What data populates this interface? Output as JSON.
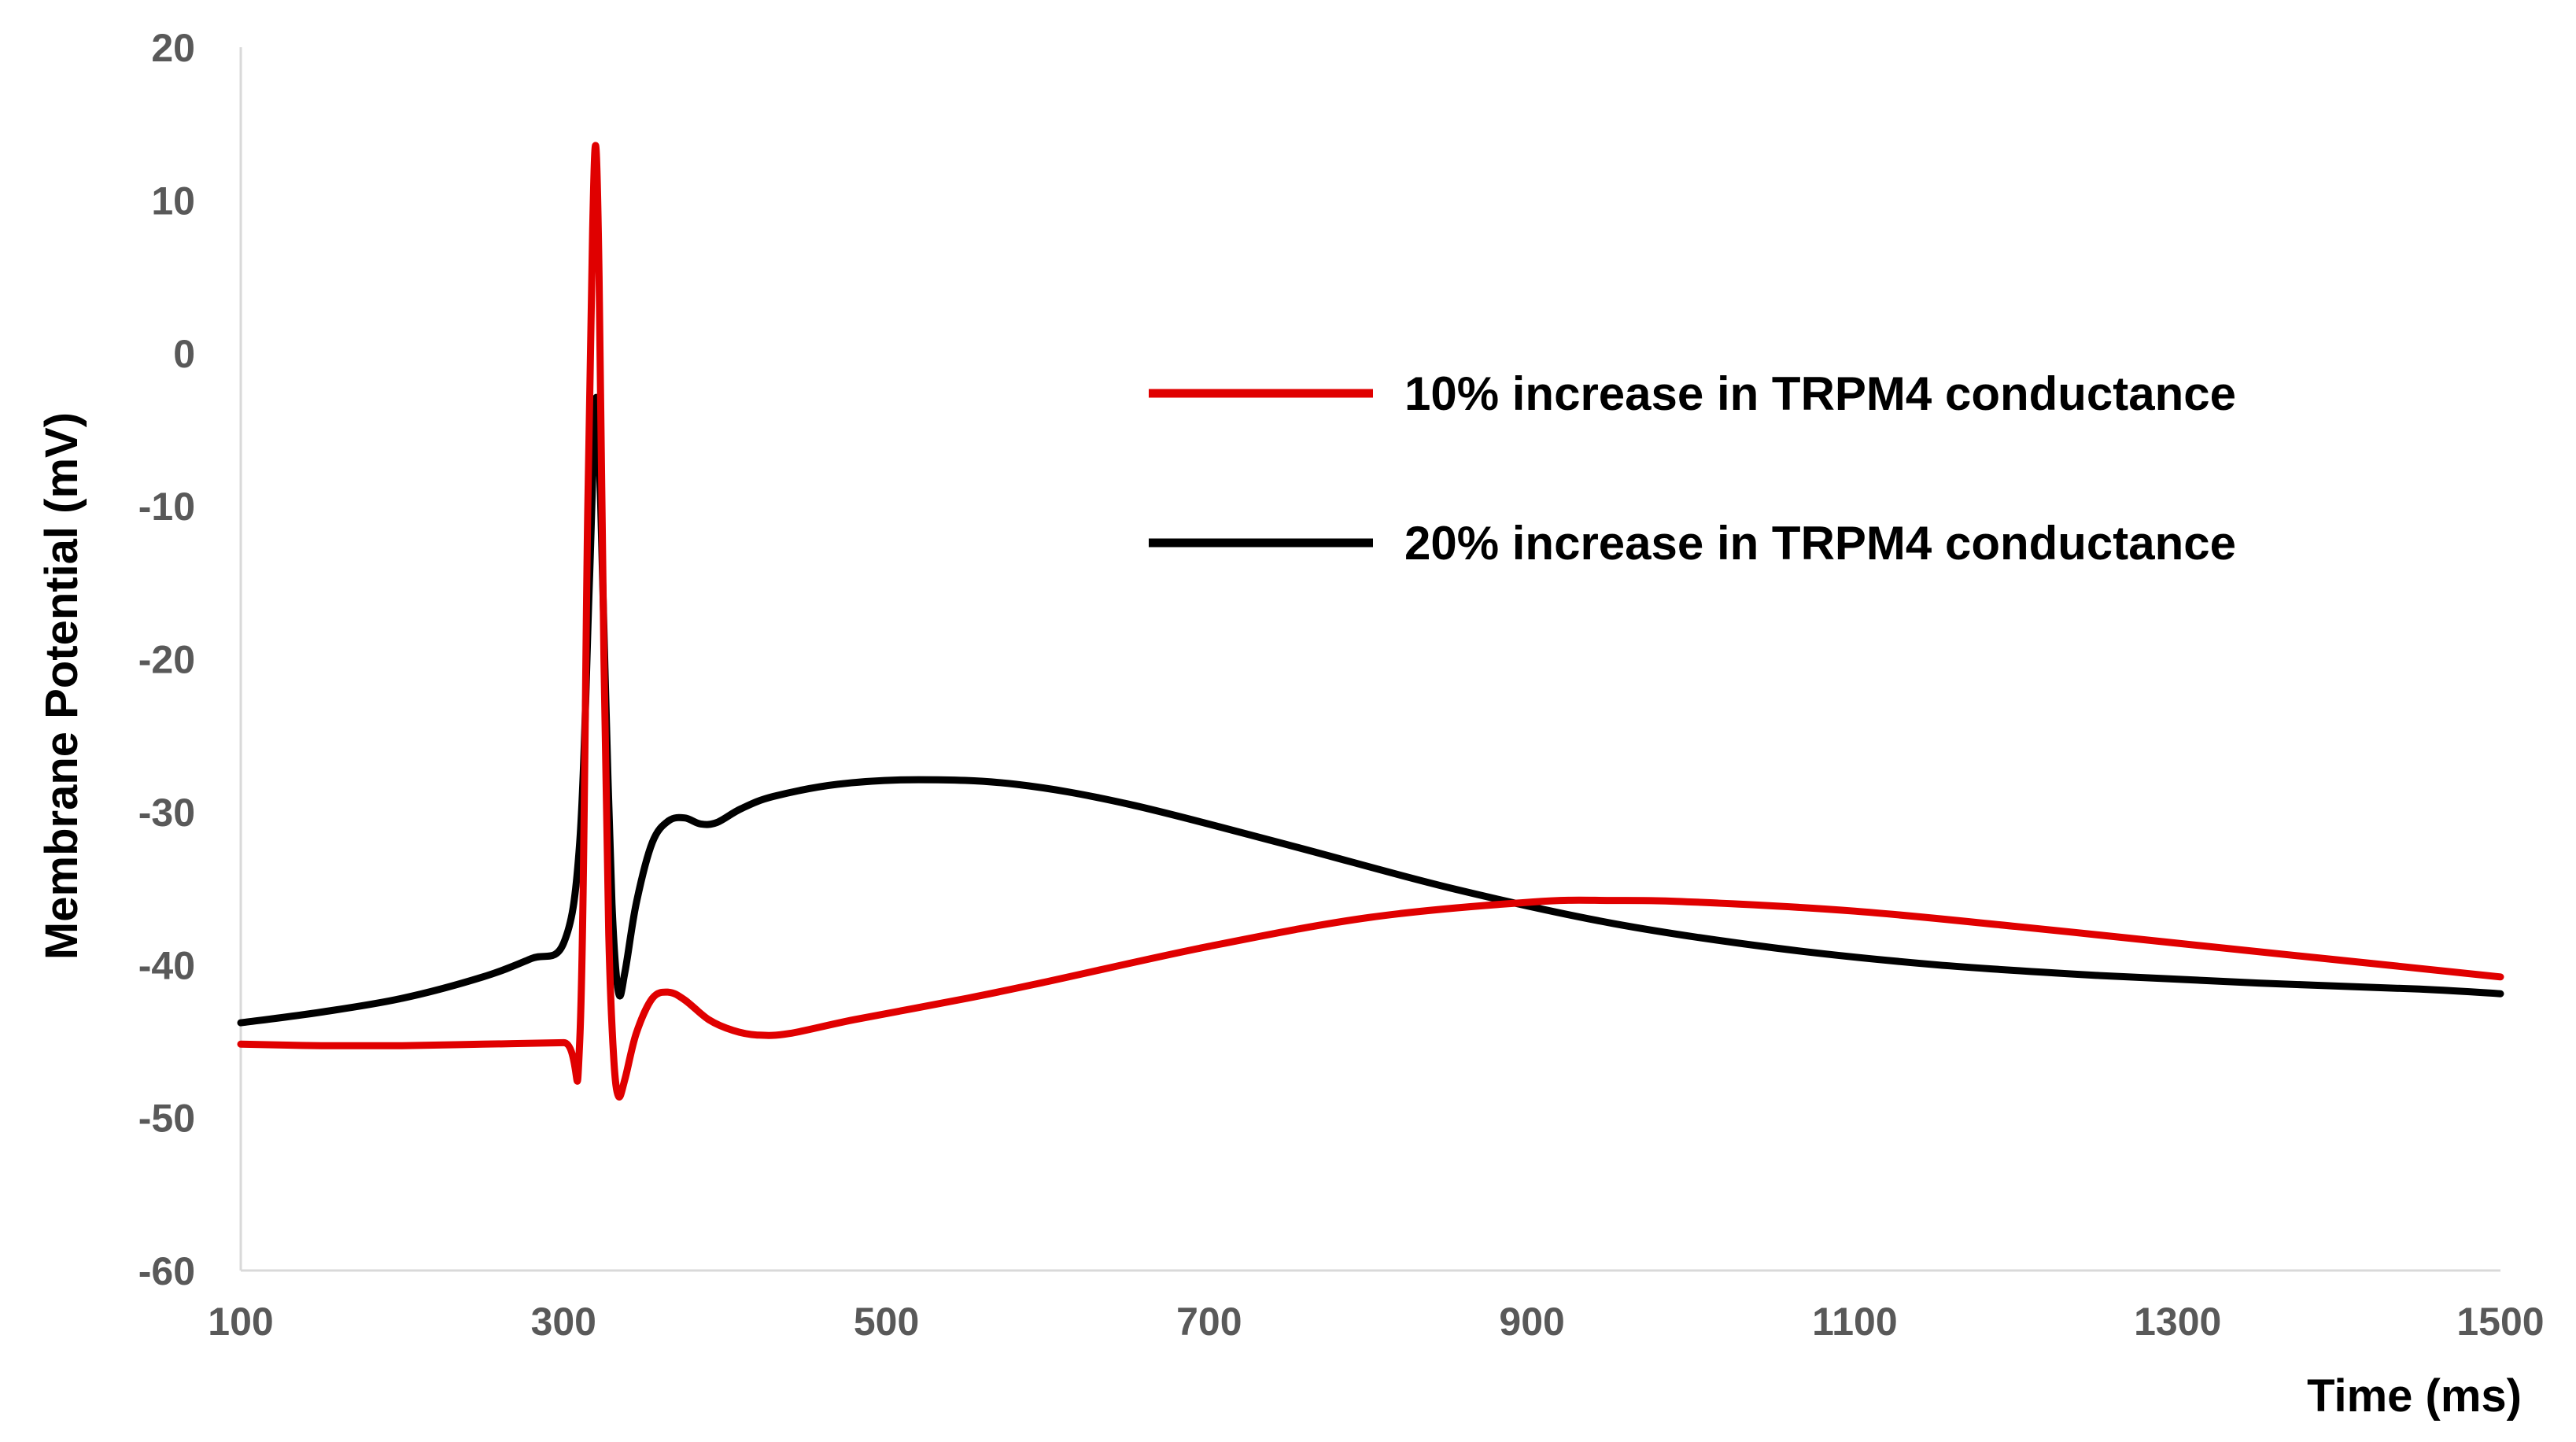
{
  "chart_data": {
    "type": "line",
    "title": "",
    "xlabel": "Time (ms)",
    "ylabel": "Membrane Potential (mV)",
    "xlim": [
      100,
      1500
    ],
    "ylim": [
      -60,
      20
    ],
    "xticks": [
      100,
      300,
      500,
      700,
      900,
      1100,
      1300,
      1500
    ],
    "yticks": [
      20,
      10,
      0,
      -10,
      -20,
      -30,
      -40,
      -50,
      -60
    ],
    "grid": false,
    "legend_position": "top-right",
    "series": [
      {
        "name": "10% increase in TRPM4 conductance",
        "color": "#e00000",
        "points": [
          [
            100,
            -45.2
          ],
          [
            150,
            -45.3
          ],
          [
            200,
            -45.3
          ],
          [
            250,
            -45.2
          ],
          [
            300,
            -45.1
          ],
          [
            310,
            -45.0
          ],
          [
            315,
            -10.0
          ],
          [
            318,
            8.0
          ],
          [
            320,
            13.5
          ],
          [
            322,
            5.0
          ],
          [
            325,
            -20.0
          ],
          [
            328,
            -38.0
          ],
          [
            331,
            -46.0
          ],
          [
            334,
            -48.6
          ],
          [
            338,
            -47.5
          ],
          [
            345,
            -44.5
          ],
          [
            355,
            -42.2
          ],
          [
            365,
            -41.8
          ],
          [
            375,
            -42.3
          ],
          [
            390,
            -43.6
          ],
          [
            405,
            -44.3
          ],
          [
            420,
            -44.6
          ],
          [
            440,
            -44.5
          ],
          [
            480,
            -43.6
          ],
          [
            550,
            -42.2
          ],
          [
            600,
            -41.1
          ],
          [
            700,
            -38.8
          ],
          [
            800,
            -36.9
          ],
          [
            900,
            -35.9
          ],
          [
            950,
            -35.8
          ],
          [
            1000,
            -35.9
          ],
          [
            1100,
            -36.5
          ],
          [
            1200,
            -37.5
          ],
          [
            1300,
            -38.6
          ],
          [
            1400,
            -39.7
          ],
          [
            1500,
            -40.8
          ]
        ]
      },
      {
        "name": "20% increase in TRPM4 conductance",
        "color": "#000000",
        "points": [
          [
            100,
            -43.8
          ],
          [
            150,
            -43.1
          ],
          [
            200,
            -42.2
          ],
          [
            250,
            -40.8
          ],
          [
            280,
            -39.6
          ],
          [
            300,
            -38.6
          ],
          [
            310,
            -32.0
          ],
          [
            316,
            -15.0
          ],
          [
            320,
            -3.0
          ],
          [
            323,
            -10.0
          ],
          [
            326,
            -22.0
          ],
          [
            330,
            -36.0
          ],
          [
            334,
            -41.8
          ],
          [
            338,
            -40.5
          ],
          [
            345,
            -36.0
          ],
          [
            355,
            -32.0
          ],
          [
            365,
            -30.6
          ],
          [
            375,
            -30.4
          ],
          [
            385,
            -30.8
          ],
          [
            395,
            -30.7
          ],
          [
            410,
            -29.8
          ],
          [
            430,
            -29.0
          ],
          [
            470,
            -28.2
          ],
          [
            520,
            -27.9
          ],
          [
            580,
            -28.2
          ],
          [
            650,
            -29.5
          ],
          [
            750,
            -32.2
          ],
          [
            850,
            -35.0
          ],
          [
            950,
            -37.3
          ],
          [
            1050,
            -38.9
          ],
          [
            1150,
            -40.0
          ],
          [
            1250,
            -40.7
          ],
          [
            1350,
            -41.2
          ],
          [
            1450,
            -41.6
          ],
          [
            1500,
            -41.9
          ]
        ]
      }
    ]
  }
}
